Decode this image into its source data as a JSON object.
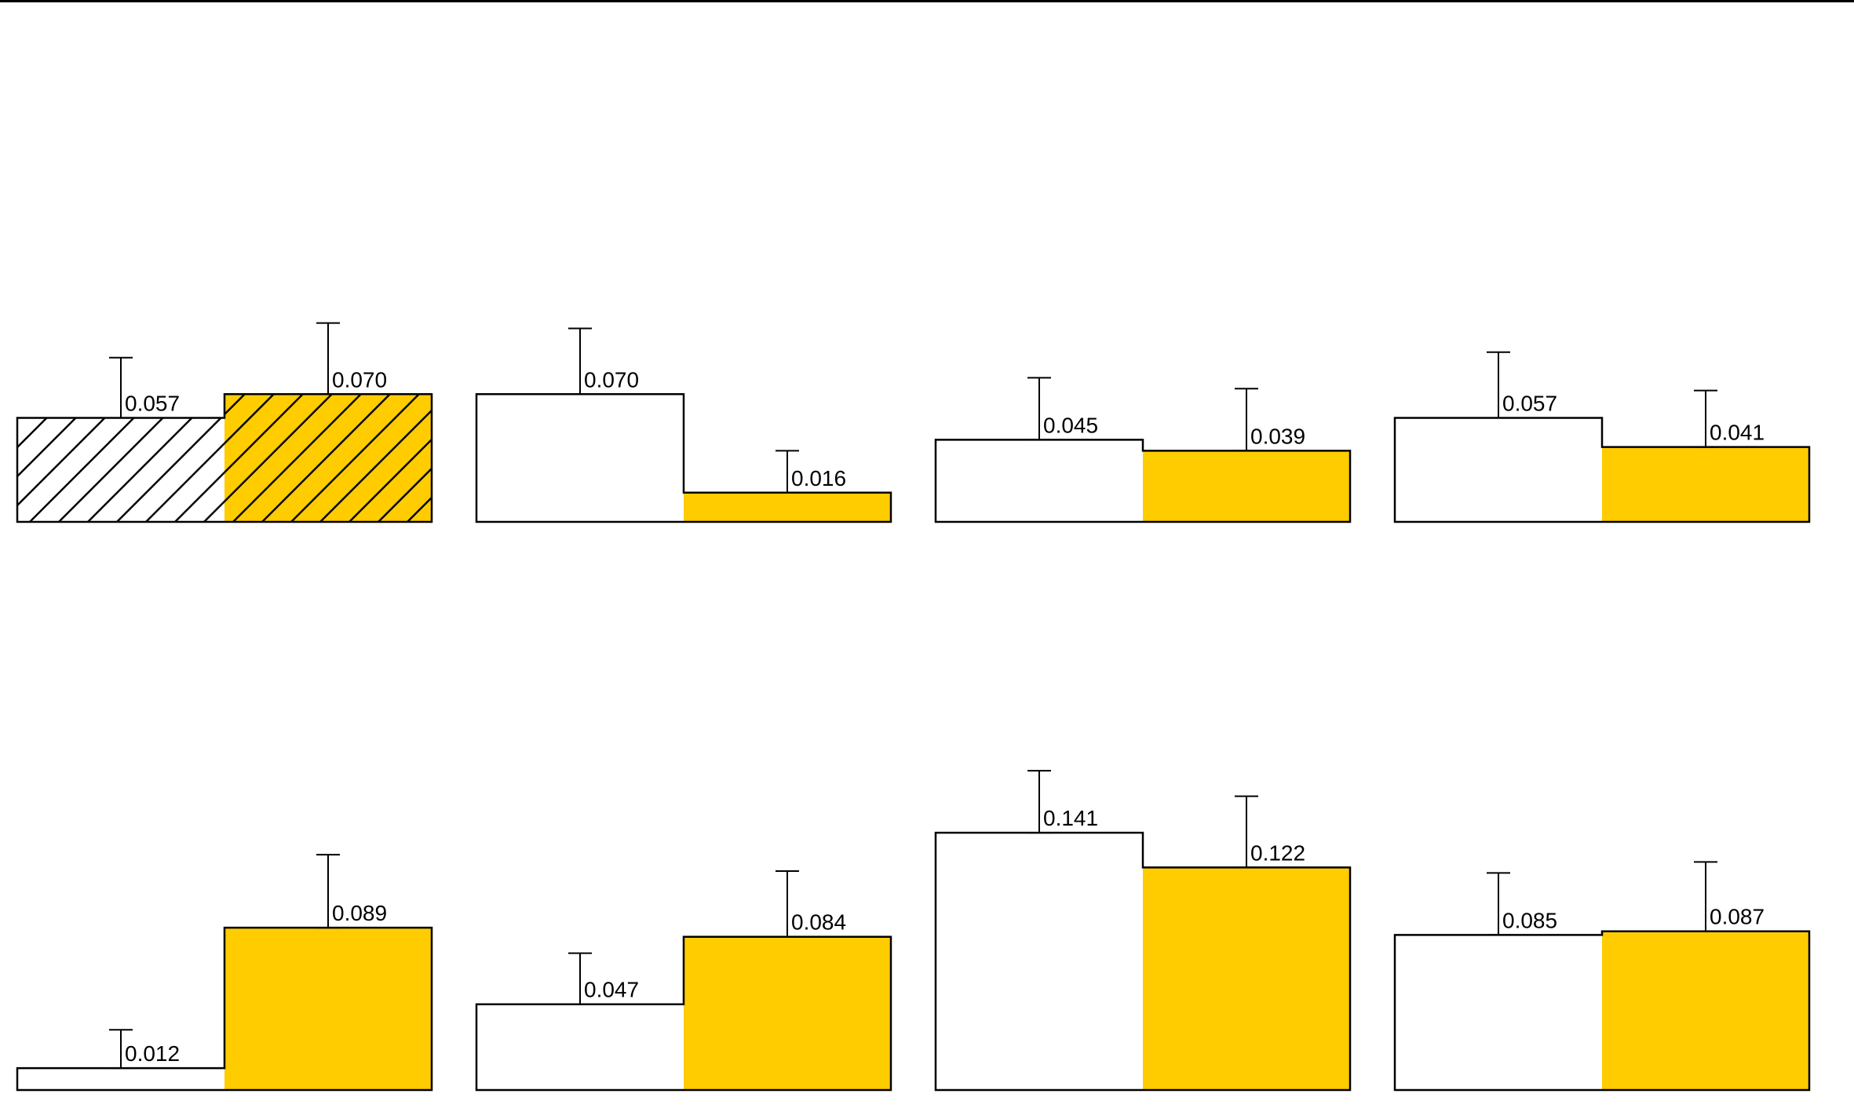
{
  "colors": {
    "left_fill": "#ffffff",
    "right_fill": "#ffcc00",
    "stroke": "#000000"
  },
  "chart_data": {
    "type": "bar",
    "title": "",
    "xlabel": "",
    "ylabel": "",
    "ylim": [
      0,
      0.15
    ],
    "grid": false,
    "legend": "none",
    "panels": [
      {
        "row": 1,
        "col": 1,
        "hatched": true,
        "values": [
          0.057,
          0.07
        ],
        "errors": [
          0.033,
          0.039
        ],
        "labels": [
          "0.057",
          "0.070"
        ]
      },
      {
        "row": 1,
        "col": 2,
        "hatched": false,
        "values": [
          0.07,
          0.016
        ],
        "errors": [
          0.036,
          0.023
        ],
        "labels": [
          "0.070",
          "0.016"
        ]
      },
      {
        "row": 1,
        "col": 3,
        "hatched": false,
        "values": [
          0.045,
          0.039
        ],
        "errors": [
          0.034,
          0.034
        ],
        "labels": [
          "0.045",
          "0.039"
        ]
      },
      {
        "row": 1,
        "col": 4,
        "hatched": false,
        "values": [
          0.057,
          0.041
        ],
        "errors": [
          0.036,
          0.031
        ],
        "labels": [
          "0.057",
          "0.041"
        ]
      },
      {
        "row": 2,
        "col": 1,
        "hatched": false,
        "values": [
          0.012,
          0.089
        ],
        "errors": [
          0.021,
          0.04
        ],
        "labels": [
          "0.012",
          "0.089"
        ]
      },
      {
        "row": 2,
        "col": 2,
        "hatched": false,
        "values": [
          0.047,
          0.084
        ],
        "errors": [
          0.028,
          0.036
        ],
        "labels": [
          "0.047",
          "0.084"
        ]
      },
      {
        "row": 2,
        "col": 3,
        "hatched": false,
        "values": [
          0.141,
          0.122
        ],
        "errors": [
          0.034,
          0.039
        ],
        "labels": [
          "0.141",
          "0.122"
        ]
      },
      {
        "row": 2,
        "col": 4,
        "hatched": false,
        "values": [
          0.085,
          0.087
        ],
        "errors": [
          0.034,
          0.038
        ],
        "labels": [
          "0.085",
          "0.087"
        ]
      }
    ]
  }
}
